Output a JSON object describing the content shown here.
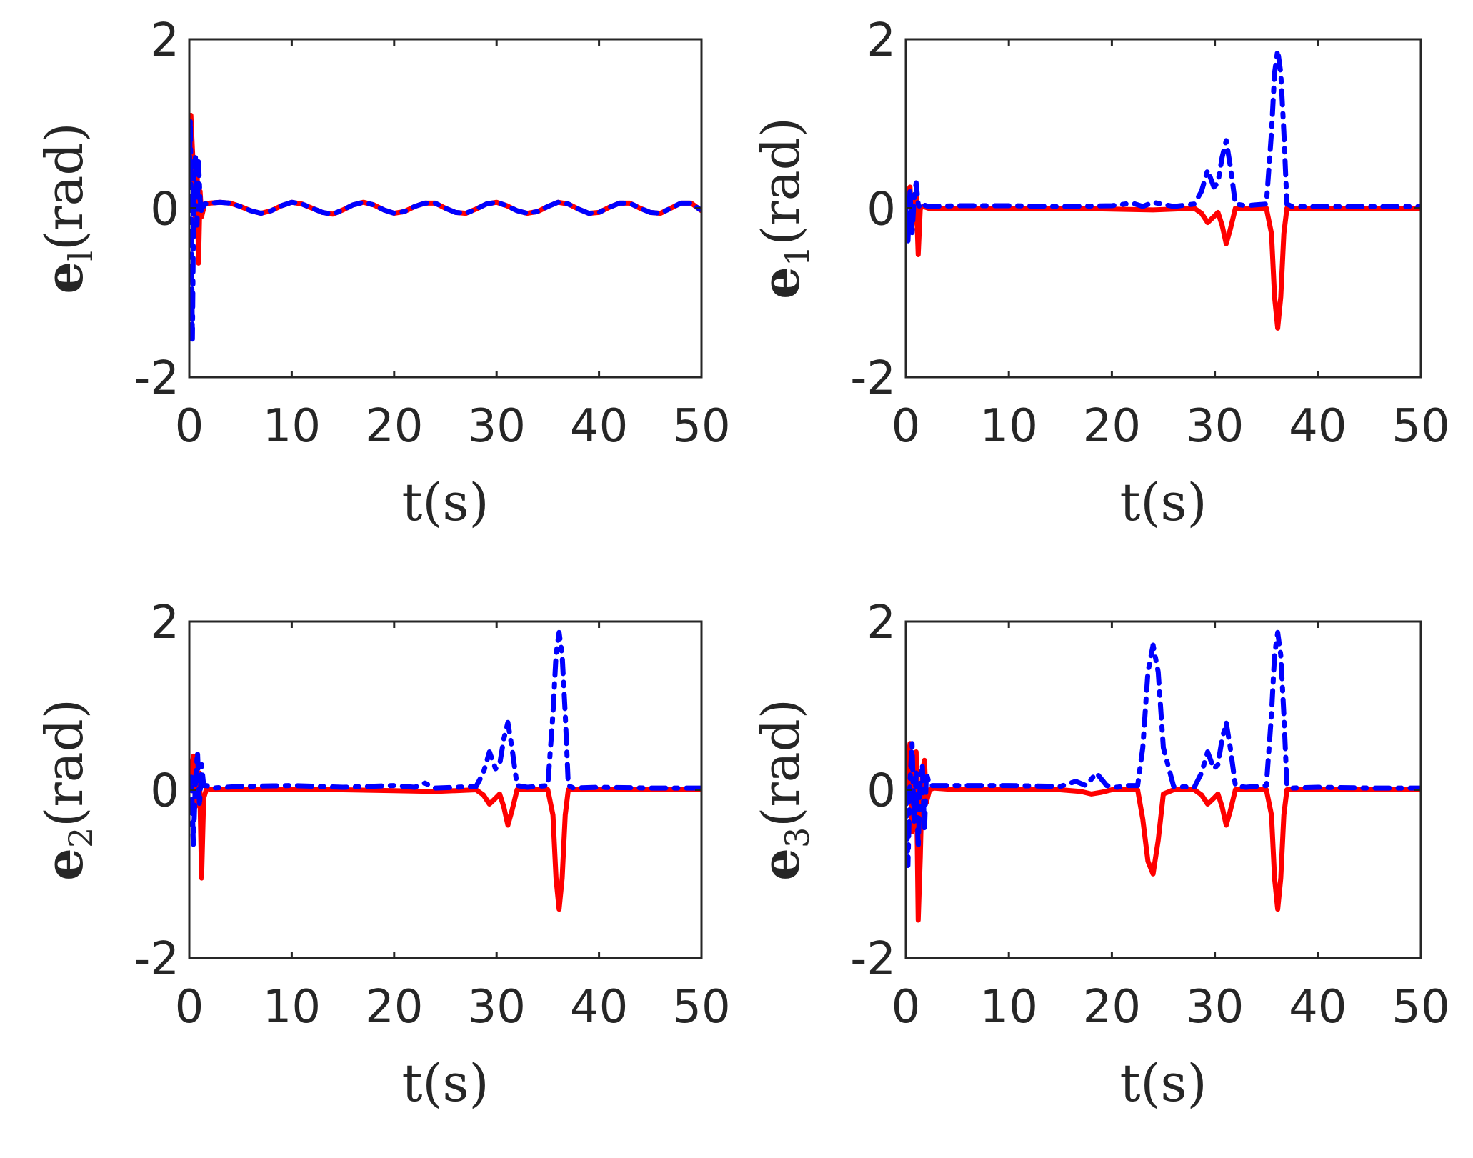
{
  "chart_data": [
    {
      "type": "line",
      "panel": "top-left",
      "ylabel_main": "e",
      "ylabel_sub": "l",
      "ylabel_unit": "(rad)",
      "xlabel": "t(s)",
      "xlim": [
        0,
        50
      ],
      "ylim": [
        -2,
        2
      ],
      "xticks": [
        "0",
        "10",
        "20",
        "30",
        "40",
        "50"
      ],
      "yticks": [
        "-2",
        "0",
        "2"
      ],
      "series": [
        {
          "name": "red-solid",
          "color": "#ff0000",
          "x": [
            0,
            0.15,
            0.3,
            0.45,
            0.6,
            0.75,
            0.9,
            1.05,
            1.2,
            1.5,
            2,
            3,
            4,
            5,
            6,
            7,
            8,
            9,
            10,
            11,
            12,
            13,
            14,
            15,
            16,
            17,
            18,
            19,
            20,
            21,
            22,
            23,
            24,
            25,
            26,
            27,
            28,
            29,
            30,
            31,
            32,
            33,
            34,
            35,
            36,
            37,
            38,
            39,
            40,
            41,
            42,
            43,
            44,
            45,
            46,
            47,
            48,
            49,
            50
          ],
          "y": [
            0.6,
            1.1,
            0.7,
            0.35,
            -0.15,
            0.55,
            -0.65,
            0.2,
            -0.1,
            0.05,
            0.06,
            0.07,
            0.06,
            0.02,
            -0.03,
            -0.06,
            -0.03,
            0.03,
            0.07,
            0.05,
            0.0,
            -0.05,
            -0.07,
            -0.02,
            0.04,
            0.07,
            0.04,
            -0.02,
            -0.06,
            -0.04,
            0.02,
            0.06,
            0.06,
            0.0,
            -0.05,
            -0.06,
            -0.01,
            0.05,
            0.07,
            0.03,
            -0.03,
            -0.06,
            -0.04,
            0.02,
            0.07,
            0.05,
            -0.01,
            -0.06,
            -0.05,
            0.01,
            0.06,
            0.06,
            0.0,
            -0.05,
            -0.06,
            0.0,
            0.06,
            0.06,
            -0.03
          ]
        },
        {
          "name": "blue-dash-dot",
          "color": "#0000ff",
          "x": [
            0,
            0.1,
            0.2,
            0.3,
            0.45,
            0.6,
            0.75,
            0.9,
            1.05,
            1.2,
            1.5,
            2,
            3,
            4,
            5,
            6,
            7,
            8,
            9,
            10,
            11,
            12,
            13,
            14,
            15,
            16,
            17,
            18,
            19,
            20,
            21,
            22,
            23,
            24,
            25,
            26,
            27,
            28,
            29,
            30,
            31,
            32,
            33,
            34,
            35,
            36,
            37,
            38,
            39,
            40,
            41,
            42,
            43,
            44,
            45,
            46,
            47,
            48,
            49,
            50
          ],
          "y": [
            0.3,
            1.05,
            -0.3,
            -1.55,
            0.4,
            0.6,
            -0.2,
            0.55,
            0.1,
            -0.05,
            0.05,
            0.06,
            0.07,
            0.06,
            0.02,
            -0.03,
            -0.06,
            -0.03,
            0.03,
            0.07,
            0.05,
            0.0,
            -0.05,
            -0.07,
            -0.02,
            0.04,
            0.07,
            0.04,
            -0.02,
            -0.06,
            -0.04,
            0.02,
            0.06,
            0.06,
            0.0,
            -0.05,
            -0.06,
            -0.01,
            0.05,
            0.07,
            0.03,
            -0.03,
            -0.06,
            -0.04,
            0.02,
            0.07,
            0.05,
            -0.01,
            -0.06,
            -0.05,
            0.01,
            0.06,
            0.06,
            0.0,
            -0.05,
            -0.06,
            0.0,
            0.06,
            0.06,
            -0.03
          ]
        }
      ]
    },
    {
      "type": "line",
      "panel": "top-right",
      "ylabel_main": "e",
      "ylabel_sub": "1",
      "ylabel_unit": "(rad)",
      "xlabel": "t(s)",
      "xlim": [
        0,
        50
      ],
      "ylim": [
        -2,
        2
      ],
      "xticks": [
        "0",
        "10",
        "20",
        "30",
        "40",
        "50"
      ],
      "yticks": [
        "-2",
        "0",
        "2"
      ],
      "series": [
        {
          "name": "red-solid",
          "color": "#ff0000",
          "x": [
            0,
            0.2,
            0.4,
            0.6,
            0.8,
            1.0,
            1.2,
            1.4,
            1.7,
            2.2,
            5,
            10,
            15,
            20,
            24,
            26,
            28,
            28.7,
            29.3,
            29.9,
            30.3,
            30.7,
            31.1,
            31.5,
            32,
            32.5,
            33,
            34,
            35,
            35.5,
            35.8,
            36.1,
            36.4,
            36.7,
            37,
            37.5,
            40,
            45,
            50
          ],
          "y": [
            0,
            0.2,
            0.25,
            -0.2,
            0.1,
            0.15,
            -0.55,
            0.0,
            0.02,
            0.0,
            0.0,
            0.0,
            0.0,
            -0.01,
            -0.02,
            -0.01,
            0.0,
            -0.06,
            -0.17,
            -0.1,
            -0.05,
            -0.2,
            -0.42,
            -0.25,
            0.0,
            0.0,
            0.0,
            0.0,
            0.0,
            -0.3,
            -1.05,
            -1.42,
            -1.05,
            -0.3,
            0.0,
            0.0,
            0.0,
            0.0,
            0.0
          ]
        },
        {
          "name": "blue-dash-dot",
          "color": "#0000ff",
          "x": [
            0,
            0.2,
            0.4,
            0.6,
            0.8,
            1.0,
            1.2,
            1.4,
            1.7,
            2.2,
            5,
            10,
            15,
            20,
            22,
            23,
            24,
            26,
            28,
            28.7,
            29.3,
            29.9,
            30.3,
            30.7,
            31.1,
            31.5,
            32,
            32.5,
            33,
            34,
            35,
            35.5,
            35.8,
            36.1,
            36.4,
            36.7,
            37,
            37.5,
            40,
            45,
            50
          ],
          "y": [
            0,
            -0.4,
            0.2,
            -0.3,
            0.1,
            0.3,
            0.05,
            0.0,
            0.04,
            0.02,
            0.03,
            0.03,
            0.02,
            0.03,
            0.06,
            0.02,
            0.07,
            0.02,
            0.05,
            0.2,
            0.45,
            0.25,
            0.3,
            0.6,
            0.8,
            0.5,
            0.05,
            0.04,
            0.03,
            0.04,
            0.05,
            0.9,
            1.6,
            1.87,
            1.6,
            0.9,
            0.05,
            0.02,
            0.02,
            0.02,
            0.02
          ]
        }
      ]
    },
    {
      "type": "line",
      "panel": "bottom-left",
      "ylabel_main": "e",
      "ylabel_sub": "2",
      "ylabel_unit": "(rad)",
      "xlabel": "t(s)",
      "xlim": [
        0,
        50
      ],
      "ylim": [
        -2,
        2
      ],
      "xticks": [
        "0",
        "10",
        "20",
        "30",
        "40",
        "50"
      ],
      "yticks": [
        "-2",
        "0",
        "2"
      ],
      "series": [
        {
          "name": "red-solid",
          "color": "#ff0000",
          "x": [
            0,
            0.2,
            0.4,
            0.6,
            0.8,
            1.0,
            1.2,
            1.4,
            1.7,
            2.2,
            5,
            10,
            15,
            20,
            24,
            26,
            28,
            28.7,
            29.3,
            29.9,
            30.3,
            30.7,
            31.1,
            31.5,
            32,
            32.5,
            33,
            34,
            35,
            35.5,
            35.8,
            36.1,
            36.4,
            36.7,
            37,
            37.5,
            40,
            45,
            50
          ],
          "y": [
            0,
            0.2,
            0.4,
            -0.2,
            0.1,
            0.2,
            -1.05,
            -0.1,
            0.02,
            0.0,
            0.0,
            0.0,
            0.0,
            -0.01,
            -0.02,
            -0.01,
            0.0,
            -0.06,
            -0.17,
            -0.1,
            -0.05,
            -0.2,
            -0.42,
            -0.25,
            0.0,
            0.0,
            0.0,
            0.0,
            0.0,
            -0.3,
            -1.05,
            -1.42,
            -1.05,
            -0.3,
            0.0,
            0.0,
            0.0,
            0.0,
            0.0
          ]
        },
        {
          "name": "blue-dash-dot",
          "color": "#0000ff",
          "x": [
            0,
            0.2,
            0.4,
            0.6,
            0.8,
            1.0,
            1.2,
            1.4,
            1.7,
            2.2,
            5,
            10,
            15,
            20,
            22,
            23,
            24,
            26,
            28,
            28.7,
            29.3,
            29.9,
            30.3,
            30.7,
            31.1,
            31.5,
            32,
            32.5,
            33,
            34,
            35,
            35.5,
            35.8,
            36.1,
            36.4,
            36.7,
            37,
            37.5,
            40,
            45,
            50
          ],
          "y": [
            0,
            0.15,
            -0.65,
            0.1,
            0.45,
            -0.2,
            0.3,
            0.05,
            0.05,
            0.02,
            0.04,
            0.05,
            0.03,
            0.05,
            0.03,
            0.08,
            0.02,
            0.03,
            0.04,
            0.2,
            0.45,
            0.25,
            0.3,
            0.6,
            0.8,
            0.5,
            0.05,
            0.04,
            0.03,
            0.04,
            0.05,
            0.9,
            1.6,
            1.87,
            1.6,
            0.9,
            0.05,
            0.02,
            0.03,
            0.02,
            0.02
          ]
        }
      ]
    },
    {
      "type": "line",
      "panel": "bottom-right",
      "ylabel_main": "e",
      "ylabel_sub": "3",
      "ylabel_unit": "(rad)",
      "xlabel": "t(s)",
      "xlim": [
        0,
        50
      ],
      "ylim": [
        -2,
        2
      ],
      "xticks": [
        "0",
        "10",
        "20",
        "30",
        "40",
        "50"
      ],
      "yticks": [
        "-2",
        "0",
        "2"
      ],
      "series": [
        {
          "name": "red-solid",
          "color": "#ff0000",
          "x": [
            0,
            0.2,
            0.4,
            0.6,
            0.8,
            1.0,
            1.2,
            1.4,
            1.6,
            1.8,
            2.0,
            2.3,
            2.7,
            5,
            10,
            15,
            17,
            18,
            19,
            20,
            21.5,
            22.5,
            23,
            23.5,
            24,
            24.5,
            25,
            26,
            28,
            28.7,
            29.3,
            29.9,
            30.3,
            30.7,
            31.1,
            31.5,
            32,
            32.5,
            33,
            34,
            35,
            35.5,
            35.8,
            36.1,
            36.4,
            36.7,
            37,
            37.5,
            40,
            45,
            50
          ],
          "y": [
            0,
            0.3,
            0.55,
            -0.5,
            -0.2,
            0.45,
            -1.55,
            -0.8,
            0.2,
            0.35,
            -0.15,
            0.0,
            0.02,
            0.0,
            0.0,
            0.0,
            -0.02,
            -0.05,
            -0.03,
            0.0,
            0.0,
            0.0,
            -0.35,
            -0.85,
            -1.0,
            -0.6,
            -0.05,
            0.0,
            0.0,
            -0.06,
            -0.17,
            -0.1,
            -0.05,
            -0.2,
            -0.42,
            -0.25,
            0.0,
            0.0,
            0.0,
            0.0,
            0.0,
            -0.3,
            -1.05,
            -1.42,
            -1.05,
            -0.3,
            0.0,
            0.0,
            0.0,
            0.0,
            0.0
          ]
        },
        {
          "name": "blue-dash-dot",
          "color": "#0000ff",
          "x": [
            0,
            0.2,
            0.4,
            0.6,
            0.8,
            1.0,
            1.2,
            1.4,
            1.6,
            1.8,
            2.0,
            2.3,
            2.7,
            5,
            10,
            15,
            16.5,
            17.5,
            18.5,
            19.5,
            20.5,
            21.5,
            22.5,
            23,
            23.5,
            24,
            24.5,
            25,
            26,
            28,
            28.7,
            29.3,
            29.9,
            30.3,
            30.7,
            31.1,
            31.5,
            32,
            32.5,
            33,
            34,
            35,
            35.5,
            35.8,
            36.1,
            36.4,
            36.7,
            37,
            37.5,
            40,
            45,
            50
          ],
          "y": [
            0,
            -0.9,
            0.1,
            0.55,
            -0.4,
            0.2,
            -0.7,
            0.15,
            0.3,
            -0.5,
            0.2,
            0.05,
            0.05,
            0.05,
            0.05,
            0.04,
            0.1,
            0.05,
            0.2,
            0.05,
            0.03,
            0.05,
            0.05,
            0.5,
            1.4,
            1.72,
            1.4,
            0.5,
            0.04,
            0.03,
            0.2,
            0.45,
            0.25,
            0.3,
            0.6,
            0.8,
            0.5,
            0.05,
            0.04,
            0.03,
            0.04,
            0.05,
            0.9,
            1.6,
            1.87,
            1.6,
            0.9,
            0.05,
            0.02,
            0.03,
            0.02,
            0.02
          ]
        }
      ]
    }
  ]
}
